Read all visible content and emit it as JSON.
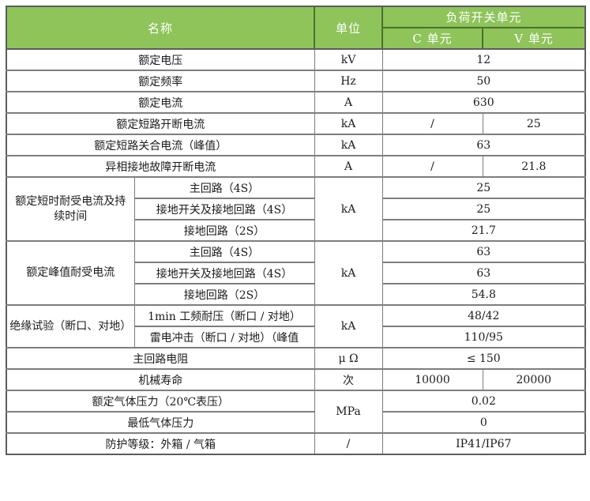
{
  "colors": {
    "header_bg": "#8ec45a",
    "header_border": "#4c702f",
    "header_text": "#ffffff",
    "grid": "#7e7e7e",
    "outer": "#5c5c5c",
    "text": "#1c1c1c",
    "page_bg": "#ffffff"
  },
  "header": {
    "name": "名称",
    "unit": "单位",
    "group": "负荷开关单元",
    "sub_c": "C 单元",
    "sub_v": "V 单元"
  },
  "rows": [
    {
      "name": "额定电压",
      "unit": "kV",
      "value": "12"
    },
    {
      "name": "额定频率",
      "unit": "Hz",
      "value": "50"
    },
    {
      "name": "额定电流",
      "unit": "A",
      "value": "630"
    },
    {
      "name": "额定短路开断电流",
      "unit": "kA",
      "c": "/",
      "v": "25"
    },
    {
      "name": "额定短路关合电流（峰值）",
      "unit": "kA",
      "value": "63"
    },
    {
      "name": "异相接地故障开断电流",
      "unit": "A",
      "c": "/",
      "v": "21.8"
    },
    {
      "group": "额定短时耐受电流及持\n续时间",
      "unit": "kA",
      "items": [
        {
          "name": "主回路（4S）",
          "value": "25"
        },
        {
          "name": "接地开关及接地回路（4S）",
          "value": "25"
        },
        {
          "name": "接地回路（2S）",
          "value": "21.7"
        }
      ]
    },
    {
      "group": "额定峰值耐受电流",
      "unit": "kA",
      "items": [
        {
          "name": "主回路（4S）",
          "value": "63"
        },
        {
          "name": "接地开关及接地回路（4S）",
          "value": "63"
        },
        {
          "name": "接地回路（2S）",
          "value": "54.8"
        }
      ]
    },
    {
      "group": "绝缘试验（断口、对地）",
      "unit": "kA",
      "items": [
        {
          "name": "1min 工频耐压（断口 / 对地）",
          "value": "48/42"
        },
        {
          "name": "雷电冲击（断口 / 对地）（峰值",
          "value": "110/95"
        }
      ]
    },
    {
      "name": "主回路电阻",
      "unit": "μ Ω",
      "value": "≤ 150"
    },
    {
      "name": "机械寿命",
      "unit": "次",
      "c": "10000",
      "v": "20000"
    },
    {
      "unit": "MPa",
      "items": [
        {
          "name": "额定气体压力（20℃表压）",
          "value": "0.02"
        },
        {
          "name": "最低气体压力",
          "value": "0"
        }
      ]
    },
    {
      "name": "防护等级：外箱 / 气箱",
      "unit": "/",
      "value": "IP41/IP67"
    }
  ]
}
